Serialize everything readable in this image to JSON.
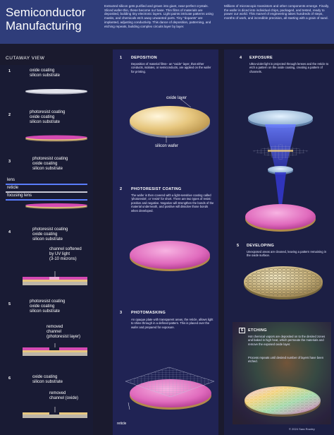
{
  "header": {
    "title_line1": "Semiconductor",
    "title_line2": "Manufacturing",
    "intro_left": "Extracted silicon gets purified and grown into giant, near-perfect crystals. Sliced wafer-thin, these become our base. Thin films of materials are deposited, building tiny electronic layers. Light paints intricate patterns using masks, and chemicals etch away unwanted parts. Tiny \"dopants\" are implanted, adjusting conductivity. This dance of deposition, patterning, and etching repeats, building complex circuits layer by layer.",
    "intro_right": "Millions of microscopic transistors and other components emerge. Finally, the wafer is diced into individual chips, packaged, and tested, ready to power our world. This marvel of engineering takes hundreds of steps, months of work, and incredible precision, all starting with a grain of sand."
  },
  "cutaway": {
    "heading": "CUTAWAY VIEW",
    "steps": [
      {
        "num": "1",
        "labels": [
          "oxide coating",
          "silicon substrate"
        ]
      },
      {
        "num": "2",
        "labels": [
          "photoresist coating",
          "oxide coating",
          "silicon substrate"
        ]
      },
      {
        "num": "3",
        "labels": [
          "photoresist coating",
          "oxide coating",
          "silicon substrate"
        ],
        "extra": [
          "lens",
          "reticle",
          "focusing lens"
        ]
      },
      {
        "num": "4",
        "labels": [
          "photoresist coating",
          "oxide coating",
          "silicon substrate"
        ],
        "extra": [
          "channel softened",
          "by UV light",
          "(3-10 microns)"
        ]
      },
      {
        "num": "5",
        "labels": [
          "photoresist coating",
          "oxide coating",
          "silicon substrate"
        ],
        "extra": [
          "removed",
          "channel",
          "(photoresist layer)"
        ]
      },
      {
        "num": "6",
        "labels": [
          "oxide coating",
          "silicon substrate"
        ],
        "extra": [
          "removed",
          "channel (oxide)"
        ]
      }
    ]
  },
  "process": {
    "deposition": {
      "num": "1",
      "title": "DEPOSITION",
      "desc": "Deposition of material films– an \"oxide\" layer, that either conducts, isolates, or semiconducts, are applied on the wafer for printing.",
      "label_top": "oxide layer",
      "label_bottom": "silicon wafer"
    },
    "photoresist": {
      "num": "2",
      "title": "PHOTORESIST COATING",
      "desc": "The wafer is then covered with a light-sensitive coating called 'photoresist', or 'resist' for short. There are two types of resist: positive and negative. Negative will strengthen the bonds of the material underneath, and positive will dissolve those bonds when developed."
    },
    "photomasking": {
      "num": "3",
      "title": "PHOTOMASKING",
      "desc": "An opaque plate with transparent areas, the reticle, allows light to shine through in a defined pattern. This is placed over the wafer and prepared for exposure.",
      "label": "reticle"
    },
    "exposure": {
      "num": "4",
      "title": "EXPOSURE",
      "desc": "Ultra-violet light is projected through lenses and the reticle to etch a pattern on the oxide coating, creating a pattern of channels."
    },
    "developing": {
      "num": "5",
      "title": "DEVELOPING",
      "desc": "Unexposed areas are cleaned, leaving a pattern remaining in the oxide surface."
    },
    "etching": {
      "num": "6",
      "title": "ETCHING",
      "desc": "Hot chemical vapors are deposited on to the desired zones and baked in high heat, which permeate the materials and remove the exposed oxide layer.",
      "desc2": "Process repeats until desired number of layers have been etched."
    }
  },
  "footer": "© 2024 Sara Rowley",
  "colors": {
    "header_bg": "#2f3d7a",
    "oxide": "#e7c77f",
    "photoresist": "#d44ab2",
    "uv": "#4f5bff"
  }
}
